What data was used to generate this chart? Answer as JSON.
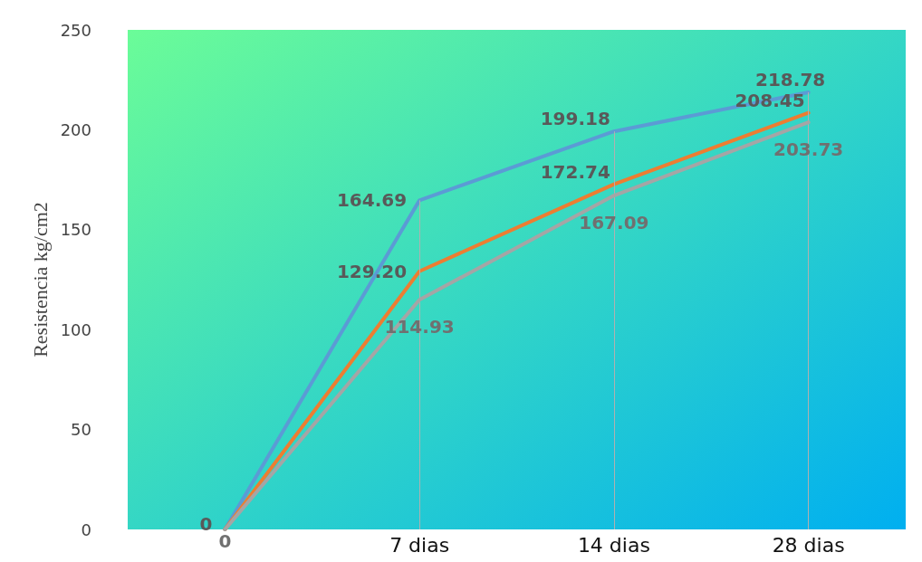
{
  "chart_data": {
    "type": "line",
    "ylabel": "Resistencia kg/cm2",
    "categories": [
      null,
      "7 dias",
      "14 dias",
      "28 dias"
    ],
    "series": [
      {
        "color": "#5b9bd5",
        "values": [
          0,
          164.69,
          199.18,
          218.78
        ],
        "value_labels": [
          "0",
          "164.69",
          "199.18",
          "218.78"
        ]
      },
      {
        "color": "#ed7d31",
        "values": [
          0,
          129.2,
          172.74,
          208.45
        ],
        "value_labels": [
          null,
          "129.20",
          "172.74",
          "208.45"
        ]
      },
      {
        "color": "#a5a5a5",
        "values": [
          0,
          114.93,
          167.09,
          203.73
        ],
        "value_labels": [
          "0",
          "114.93",
          "167.09",
          "203.73"
        ]
      }
    ],
    "ylim": [
      0,
      250
    ],
    "yticks": [
      0,
      50,
      100,
      150,
      200,
      250
    ],
    "grid": "x",
    "marker": "none",
    "line_style": "solid"
  }
}
